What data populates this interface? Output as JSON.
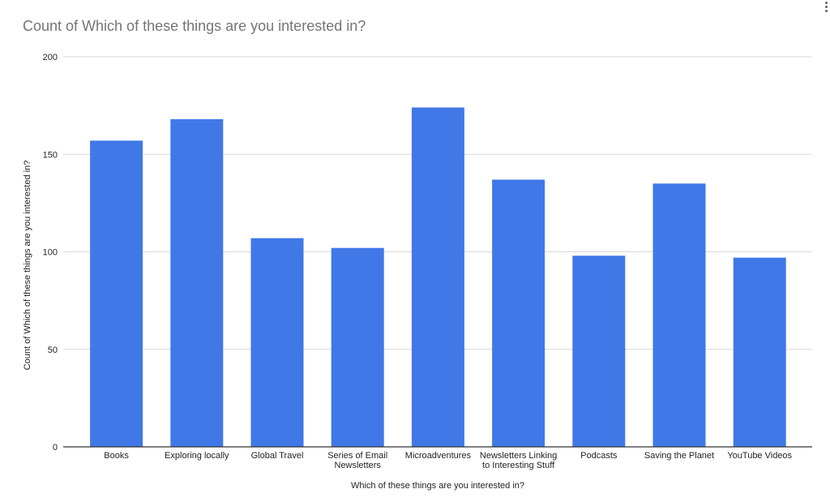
{
  "chart_data": {
    "type": "bar",
    "title": "Count of Which of these things are you interested in?",
    "xlabel": "Which of these things are you interested in?",
    "ylabel": "Count of Which of these things are you interested in?",
    "categories": [
      [
        "Books"
      ],
      [
        "Exploring locally"
      ],
      [
        "Global Travel"
      ],
      [
        "Series of Email",
        "Newsletters"
      ],
      [
        "Microadventures"
      ],
      [
        "Newsletters Linking",
        "to Interesting Stuff"
      ],
      [
        "Podcasts"
      ],
      [
        "Saving the Planet"
      ],
      [
        "YouTube Videos"
      ]
    ],
    "values": [
      157,
      168,
      107,
      102,
      174,
      137,
      98,
      135,
      97
    ],
    "ylim": [
      0,
      200
    ],
    "yticks": [
      0,
      50,
      100,
      150,
      200
    ],
    "grid": true,
    "legend": "none",
    "bar_color": "#4178e8",
    "grid_color": "#d9d9d9",
    "axis_color": "#333333"
  },
  "menu": {
    "icon": "more-vert-icon"
  }
}
